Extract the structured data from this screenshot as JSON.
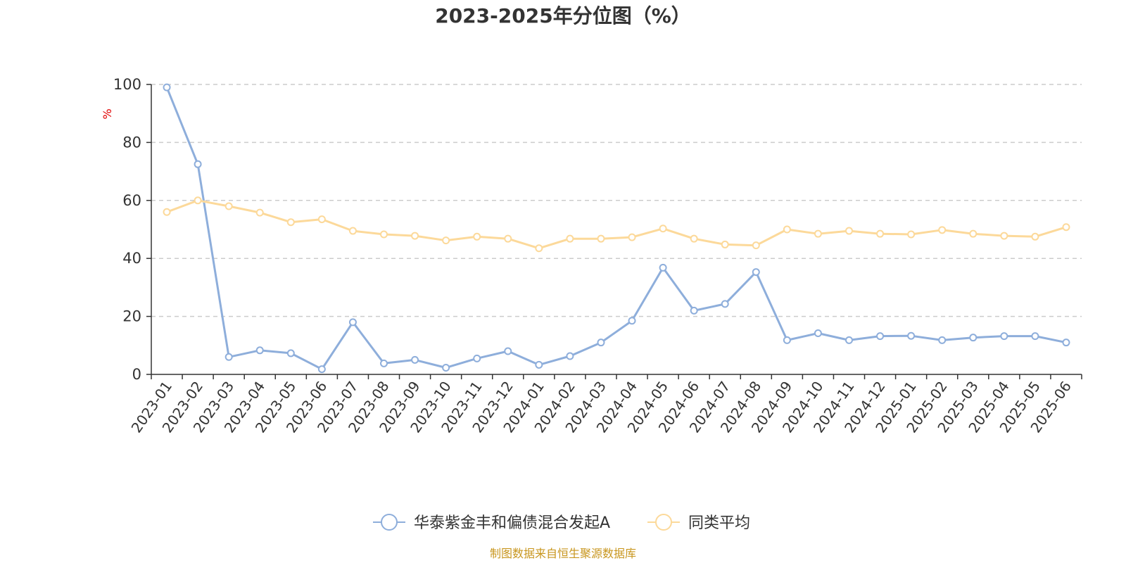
{
  "chart_data": {
    "type": "line",
    "title": "2023-2025年分位图（%）",
    "ylabel": "%",
    "xlabel": "",
    "ylim": [
      0,
      100
    ],
    "yticks": [
      0,
      20,
      40,
      60,
      80,
      100
    ],
    "grid": true,
    "legend_position": "bottom",
    "categories": [
      "2023-01",
      "2023-02",
      "2023-03",
      "2023-04",
      "2023-05",
      "2023-06",
      "2023-07",
      "2023-08",
      "2023-09",
      "2023-10",
      "2023-11",
      "2023-12",
      "2024-01",
      "2024-02",
      "2024-03",
      "2024-04",
      "2024-05",
      "2024-06",
      "2024-07",
      "2024-08",
      "2024-09",
      "2024-10",
      "2024-11",
      "2024-12",
      "2025-01",
      "2025-02",
      "2025-03",
      "2025-04",
      "2025-05",
      "2025-06"
    ],
    "series": [
      {
        "name": "华泰紫金丰和偏债混合发起A",
        "color": "#8eaedb",
        "values": [
          99,
          72.5,
          6,
          8.3,
          7.3,
          1.8,
          18,
          3.8,
          5,
          2.3,
          5.5,
          8,
          3.3,
          6.3,
          11,
          18.5,
          36.8,
          22,
          24.3,
          35.3,
          11.8,
          14.2,
          11.8,
          13.2,
          13.3,
          11.8,
          12.7,
          13.2,
          13.2,
          11
        ]
      },
      {
        "name": "同类平均",
        "color": "#fcd99a",
        "values": [
          56,
          60,
          58,
          55.8,
          52.5,
          53.5,
          49.5,
          48.3,
          47.8,
          46.2,
          47.5,
          46.8,
          43.5,
          46.8,
          46.8,
          47.3,
          50.3,
          46.8,
          44.8,
          44.5,
          50,
          48.5,
          49.5,
          48.5,
          48.3,
          49.8,
          48.5,
          47.8,
          47.5,
          50.8
        ]
      }
    ],
    "unit_color": "#e00000",
    "source_text": "制图数据来自恒生聚源数据库",
    "source_color": "#c8961e"
  }
}
